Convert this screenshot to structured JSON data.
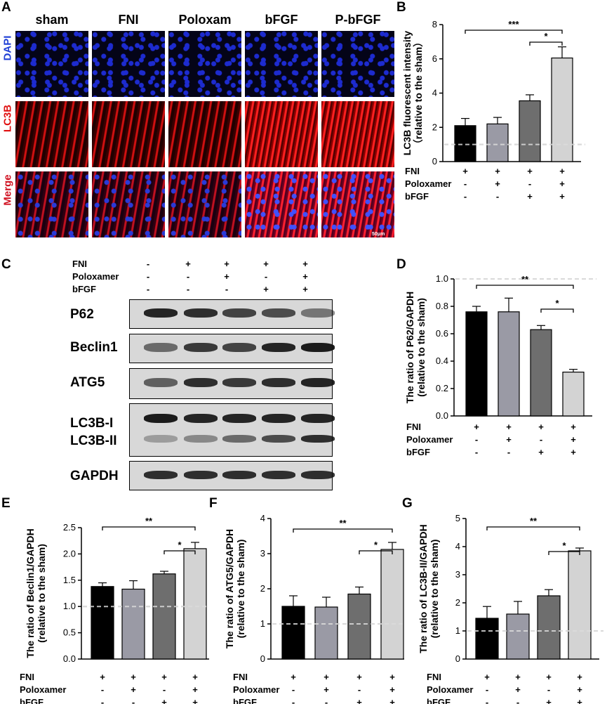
{
  "panel_letters": {
    "A": "A",
    "B": "B",
    "C": "C",
    "D": "D",
    "E": "E",
    "F": "F",
    "G": "G"
  },
  "panelA": {
    "columns": [
      "sham",
      "FNI",
      "Poloxam",
      "bFGF",
      "P-bFGF"
    ],
    "rows": [
      {
        "label": "DAPI",
        "color": "#1f3fd6"
      },
      {
        "label": "LC3B",
        "color": "#e01010"
      },
      {
        "label": "Merge",
        "color": "#d01020"
      }
    ],
    "scale_bar": "50μm"
  },
  "conditions": {
    "row_labels": [
      "FNI",
      "Poloxamer",
      "bFGF"
    ],
    "groups": [
      [
        "+",
        "-",
        "-"
      ],
      [
        "+",
        "+",
        "-"
      ],
      [
        "+",
        "-",
        "+"
      ],
      [
        "+",
        "+",
        "+"
      ]
    ]
  },
  "panelC": {
    "row_labels": [
      "FNI",
      "Poloxamer",
      "bFGF"
    ],
    "lanes": [
      [
        "-",
        "-",
        "-"
      ],
      [
        "+",
        "-",
        "-"
      ],
      [
        "+",
        "+",
        "-"
      ],
      [
        "+",
        "-",
        "+"
      ],
      [
        "+",
        "+",
        "+"
      ]
    ],
    "blots": [
      "P62",
      "Beclin1",
      "ATG5",
      "LC3B-I",
      "LC3B-II",
      "GAPDH"
    ],
    "band_intensity": {
      "P62": [
        0.9,
        0.85,
        0.75,
        0.7,
        0.5
      ],
      "Beclin1": [
        0.55,
        0.8,
        0.75,
        0.9,
        0.95
      ],
      "ATG5": [
        0.6,
        0.85,
        0.8,
        0.85,
        0.9
      ],
      "LC3B-I": [
        0.95,
        0.9,
        0.9,
        0.9,
        0.9
      ],
      "LC3B-II": [
        0.3,
        0.4,
        0.55,
        0.7,
        0.85
      ],
      "GAPDH": [
        0.85,
        0.85,
        0.85,
        0.85,
        0.85
      ]
    }
  },
  "bar_colors": [
    "#000000",
    "#9a9aa5",
    "#6e6e6e",
    "#d3d3d3"
  ],
  "chart_data": [
    {
      "panel": "B",
      "type": "bar",
      "ylabel": "LC3B fluorescent intensity\n（relative to the sham）",
      "ylim": [
        0,
        8
      ],
      "yticks": [
        0,
        2,
        4,
        6,
        8
      ],
      "values": [
        2.1,
        2.2,
        3.55,
        6.05
      ],
      "errors": [
        0.42,
        0.38,
        0.35,
        0.65
      ],
      "reference_line": 1,
      "significance": [
        {
          "from": 0,
          "to": 3,
          "label": "***"
        },
        {
          "from": 2,
          "to": 3,
          "label": "*"
        }
      ]
    },
    {
      "panel": "D",
      "type": "bar",
      "ylabel": "The ratio of P62/GAPDH\n(relative to the sham)",
      "ylim": [
        0,
        1.0
      ],
      "yticks": [
        "0.0",
        "0.2",
        "0.4",
        "0.6",
        "0.8",
        "1.0"
      ],
      "values": [
        0.76,
        0.76,
        0.63,
        0.32
      ],
      "errors": [
        0.04,
        0.1,
        0.03,
        0.02
      ],
      "reference_line": 1,
      "significance": [
        {
          "from": 0,
          "to": 3,
          "label": "**"
        },
        {
          "from": 2,
          "to": 3,
          "label": "*"
        }
      ]
    },
    {
      "panel": "E",
      "type": "bar",
      "ylabel": "The ratio of Beclin1/GAPDH\n(relative to the sham)",
      "ylim": [
        0,
        2.5
      ],
      "yticks": [
        "0.0",
        "0.5",
        "1.0",
        "1.5",
        "2.0",
        "2.5"
      ],
      "values": [
        1.38,
        1.33,
        1.62,
        2.1
      ],
      "errors": [
        0.07,
        0.16,
        0.05,
        0.12
      ],
      "reference_line": 1,
      "significance": [
        {
          "from": 0,
          "to": 3,
          "label": "**"
        },
        {
          "from": 2,
          "to": 3,
          "label": "*"
        }
      ]
    },
    {
      "panel": "F",
      "type": "bar",
      "ylabel": "The ratio of ATG5/GAPDH\n(relative to the sham)",
      "ylim": [
        0,
        4
      ],
      "yticks": [
        "0",
        "1",
        "2",
        "3",
        "4"
      ],
      "values": [
        1.5,
        1.48,
        1.85,
        3.12
      ],
      "errors": [
        0.3,
        0.28,
        0.2,
        0.2
      ],
      "reference_line": 1,
      "significance": [
        {
          "from": 0,
          "to": 3,
          "label": "**"
        },
        {
          "from": 2,
          "to": 3,
          "label": "*"
        }
      ]
    },
    {
      "panel": "G",
      "type": "bar",
      "ylabel": "The ratio of LC3B-II/GAPDH\n(relative to the sham)",
      "ylim": [
        0,
        5
      ],
      "yticks": [
        "0",
        "1",
        "2",
        "3",
        "4",
        "5"
      ],
      "values": [
        1.45,
        1.6,
        2.25,
        3.85
      ],
      "errors": [
        0.42,
        0.45,
        0.22,
        0.1
      ],
      "reference_line": 1,
      "significance": [
        {
          "from": 0,
          "to": 3,
          "label": "**"
        },
        {
          "from": 2,
          "to": 3,
          "label": "*"
        }
      ]
    }
  ]
}
